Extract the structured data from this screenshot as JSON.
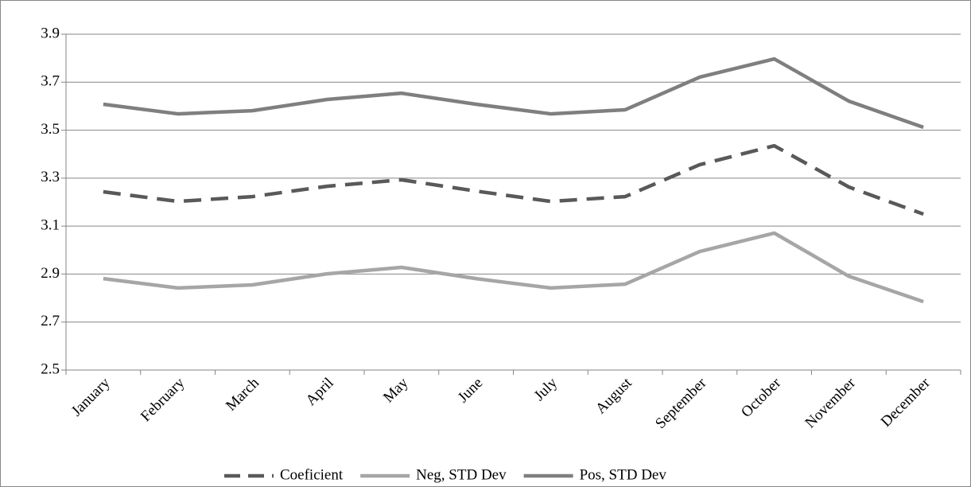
{
  "chart_data": {
    "type": "line",
    "categories": [
      "January",
      "February",
      "March",
      "April",
      "May",
      "June",
      "July",
      "August",
      "September",
      "October",
      "November",
      "December"
    ],
    "series": [
      {
        "name": "Coeficient",
        "color": "#595959",
        "dashed": true,
        "values": [
          3.243,
          3.203,
          3.223,
          3.266,
          3.293,
          3.246,
          3.203,
          3.223,
          3.356,
          3.435,
          3.263,
          3.15
        ]
      },
      {
        "name": "Neg, STD Dev",
        "color": "#a6a6a6",
        "dashed": false,
        "values": [
          2.881,
          2.842,
          2.855,
          2.901,
          2.928,
          2.881,
          2.842,
          2.858,
          2.994,
          3.071,
          2.891,
          2.785
        ]
      },
      {
        "name": "Pos, STD Dev",
        "color": "#7f7f7f",
        "dashed": false,
        "values": [
          3.608,
          3.568,
          3.581,
          3.628,
          3.654,
          3.608,
          3.568,
          3.585,
          3.721,
          3.797,
          3.621,
          3.512
        ]
      }
    ],
    "ylim": [
      2.5,
      3.9
    ],
    "yticks": [
      2.5,
      2.7,
      2.9,
      3.1,
      3.3,
      3.5,
      3.7,
      3.9
    ],
    "grid": true,
    "legend": "bottom"
  }
}
